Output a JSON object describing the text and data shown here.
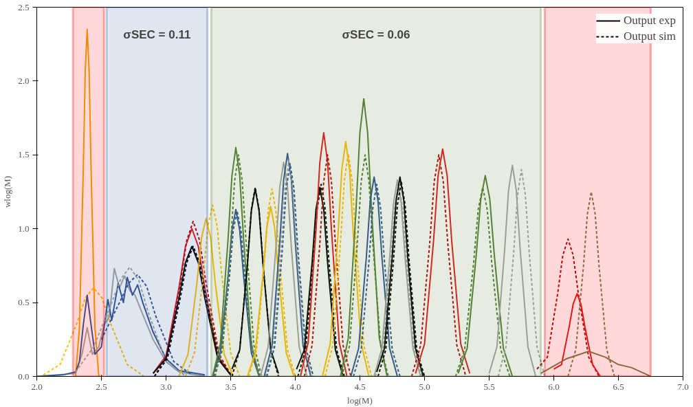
{
  "chart_data": {
    "type": "line",
    "xlabel": "log(M)",
    "ylabel": "wlog(M)",
    "xlim": [
      2.0,
      7.0
    ],
    "ylim": [
      0,
      2.5
    ],
    "xticks": [
      {
        "value": 2.0,
        "label": "2.0"
      },
      {
        "value": 2.5,
        "label": "2.5"
      },
      {
        "value": 3.0,
        "label": "3.0"
      },
      {
        "value": 3.5,
        "label": "3.5"
      },
      {
        "value": 4.0,
        "label": "4.0"
      },
      {
        "value": 4.5,
        "label": "4.5"
      },
      {
        "value": 5.0,
        "label": "5.0"
      },
      {
        "value": 5.5,
        "label": "5.5"
      },
      {
        "value": 6.0,
        "label": "6.0"
      },
      {
        "value": 6.5,
        "label": "6.5"
      },
      {
        "value": 7.0,
        "label": "7.0"
      }
    ],
    "yticks": [
      {
        "value": 0,
        "label": "0.0"
      },
      {
        "value": 0.5,
        "label": "0.5"
      },
      {
        "value": 1.0,
        "label": "1.0"
      },
      {
        "value": 1.5,
        "label": "1.5"
      },
      {
        "value": 2.0,
        "label": "2.0"
      },
      {
        "value": 2.5,
        "label": "2.5"
      }
    ],
    "grid": false,
    "legend": "top right",
    "bands": [
      {
        "axis": "x",
        "from": 2.28,
        "to": 2.52,
        "label": null,
        "color": "#ff0000"
      },
      {
        "axis": "x",
        "from": 2.54,
        "to": 3.32,
        "label": "σSEC = 0.11",
        "color": "#2f5597"
      },
      {
        "axis": "x",
        "from": 3.35,
        "to": 5.9,
        "label": "σSEC = 0.06",
        "color": "#548235"
      },
      {
        "axis": "x",
        "from": 5.93,
        "to": 6.75,
        "label": null,
        "color": "#ff0000"
      }
    ],
    "series": [
      {
        "color": "#f4a300",
        "line_style": "solid",
        "x": [
          2.3,
          2.33,
          2.36,
          2.375,
          2.39,
          2.405,
          2.42,
          2.45,
          2.48
        ],
        "values": [
          0,
          0.33,
          1.41,
          2.07,
          2.35,
          2.07,
          1.41,
          0.33,
          0
        ]
      },
      {
        "color": "#a6a6a6",
        "line_style": "solid",
        "x": [
          2.0,
          2.3,
          2.35,
          2.39,
          2.43,
          2.48,
          2.52,
          2.56,
          2.6,
          2.64,
          2.68,
          2.72,
          2.76,
          2.82,
          2.9,
          3.0,
          3.1,
          3.3
        ],
        "values": [
          0,
          0.02,
          0.15,
          0.33,
          0.15,
          0.2,
          0.35,
          0.4,
          0.73,
          0.6,
          0.68,
          0.58,
          0.55,
          0.42,
          0.25,
          0.1,
          0.03,
          0
        ]
      },
      {
        "color": "#ffc000",
        "line_style": "dashed",
        "x": [
          2.05,
          2.18,
          2.31,
          2.375,
          2.44,
          2.505,
          2.57,
          2.7,
          2.83
        ],
        "values": [
          0.01,
          0.08,
          0.36,
          0.53,
          0.6,
          0.53,
          0.36,
          0.08,
          0
        ]
      },
      {
        "color": "#2f5597",
        "line_style": "dashed",
        "x": [
          2.5,
          2.64,
          2.71,
          2.78,
          2.85,
          2.92,
          3.06,
          3.2
        ],
        "values": [
          0.25,
          0.5,
          0.63,
          0.69,
          0.61,
          0.41,
          0.1,
          0.01
        ]
      },
      {
        "color": "#2f5597",
        "line_style": "solid",
        "x": [
          2.0,
          2.2,
          2.3,
          2.33,
          2.36,
          2.39,
          2.42,
          2.45,
          2.5,
          2.55,
          2.58,
          2.63,
          2.67,
          2.7,
          2.74,
          2.78,
          2.82,
          2.9,
          3.0,
          3.1,
          3.3
        ],
        "values": [
          0,
          0.01,
          0.03,
          0.1,
          0.35,
          0.55,
          0.35,
          0.15,
          0.2,
          0.52,
          0.38,
          0.63,
          0.5,
          0.67,
          0.55,
          0.62,
          0.5,
          0.3,
          0.12,
          0.04,
          0.01
        ]
      },
      {
        "color": "#a6a6a6",
        "line_style": "dashed",
        "x": [
          2.3,
          2.44,
          2.58,
          2.65,
          2.72,
          2.79,
          2.86,
          3.0,
          3.14
        ],
        "values": [
          0.03,
          0.2,
          0.5,
          0.66,
          0.74,
          0.65,
          0.44,
          0.1,
          0.01
        ]
      },
      {
        "color": "#e31a1c",
        "line_style": "solid",
        "x": [
          2.9,
          3.0,
          3.1,
          3.15,
          3.2,
          3.25,
          3.3,
          3.4,
          3.5
        ],
        "values": [
          0.02,
          0.14,
          0.6,
          0.88,
          1.0,
          0.88,
          0.6,
          0.14,
          0.01
        ]
      },
      {
        "color": "#c00000",
        "line_style": "dashed",
        "x": [
          2.91,
          3.01,
          3.11,
          3.16,
          3.21,
          3.26,
          3.31,
          3.41,
          3.51
        ],
        "values": [
          0,
          0.15,
          0.63,
          0.92,
          1.05,
          0.92,
          0.63,
          0.15,
          0
        ]
      },
      {
        "name": "Output exp",
        "color": "#000000",
        "line_style": "solid",
        "x": [
          2.9,
          3.0,
          3.1,
          3.15,
          3.2,
          3.25,
          3.3,
          3.4,
          3.5
        ],
        "values": [
          0.02,
          0.12,
          0.53,
          0.77,
          0.88,
          0.77,
          0.53,
          0.12,
          0.01
        ]
      },
      {
        "name": "Output sim",
        "color": "#000000",
        "line_style": "dashed",
        "x": [
          2.91,
          3.01,
          3.11,
          3.16,
          3.21,
          3.26,
          3.31,
          3.41,
          3.51
        ],
        "values": [
          0,
          0.12,
          0.53,
          0.77,
          0.88,
          0.77,
          0.53,
          0.12,
          0
        ]
      },
      {
        "color": "#ffc000",
        "line_style": "solid",
        "x": [
          3.1,
          3.17,
          3.24,
          3.275,
          3.31,
          3.345,
          3.38,
          3.45,
          3.52
        ],
        "values": [
          0,
          0.15,
          0.64,
          0.94,
          1.07,
          0.94,
          0.64,
          0.15,
          0
        ]
      },
      {
        "color": "#ffc000",
        "line_style": "dashed",
        "x": [
          3.15,
          3.22,
          3.29,
          3.325,
          3.36,
          3.395,
          3.43,
          3.5,
          3.57
        ],
        "values": [
          0,
          0.16,
          0.7,
          1.02,
          1.16,
          1.02,
          0.7,
          0.16,
          0
        ]
      },
      {
        "color": "#2f5597",
        "line_style": "solid",
        "x": [
          3.36,
          3.42,
          3.48,
          3.51,
          3.54,
          3.57,
          3.6,
          3.66,
          3.72
        ],
        "values": [
          0,
          0.16,
          0.68,
          0.99,
          1.13,
          0.99,
          0.68,
          0.16,
          0
        ]
      },
      {
        "color": "#2f5597",
        "line_style": "dashed",
        "x": [
          3.37,
          3.43,
          3.49,
          3.52,
          3.55,
          3.58,
          3.61,
          3.67,
          3.73
        ],
        "values": [
          0,
          0.16,
          0.67,
          0.99,
          1.12,
          0.99,
          0.67,
          0.16,
          0
        ]
      },
      {
        "color": "#548235",
        "line_style": "solid",
        "x": [
          3.36,
          3.42,
          3.48,
          3.51,
          3.54,
          3.57,
          3.6,
          3.66,
          3.72
        ],
        "values": [
          0,
          0.22,
          0.93,
          1.36,
          1.55,
          1.36,
          0.93,
          0.22,
          0
        ]
      },
      {
        "color": "#548235",
        "line_style": "dashed",
        "x": [
          3.38,
          3.44,
          3.5,
          3.53,
          3.56,
          3.59,
          3.62,
          3.68,
          3.74
        ],
        "values": [
          0,
          0.21,
          0.9,
          1.32,
          1.5,
          1.32,
          0.9,
          0.21,
          0
        ]
      },
      {
        "color": "#000000",
        "line_style": "solid",
        "x": [
          3.51,
          3.57,
          3.63,
          3.66,
          3.69,
          3.72,
          3.75,
          3.81,
          3.87
        ],
        "values": [
          0.05,
          0.18,
          0.76,
          1.12,
          1.27,
          1.12,
          0.76,
          0.18,
          0.02
        ]
      },
      {
        "color": "#000000",
        "line_style": "dashed",
        "x": [
          3.51,
          3.57,
          3.63,
          3.66,
          3.69,
          3.72,
          3.75,
          3.81,
          3.87
        ],
        "values": [
          0,
          0.18,
          0.77,
          1.13,
          1.28,
          1.13,
          0.77,
          0.18,
          0
        ]
      },
      {
        "color": "#ffc000",
        "line_style": "solid",
        "x": [
          3.63,
          3.69,
          3.75,
          3.78,
          3.81,
          3.84,
          3.87,
          3.93,
          3.99
        ],
        "values": [
          0,
          0.16,
          0.69,
          1.01,
          1.15,
          1.01,
          0.69,
          0.16,
          0
        ]
      },
      {
        "color": "#ffc000",
        "line_style": "dashed",
        "x": [
          3.64,
          3.7,
          3.76,
          3.79,
          3.82,
          3.85,
          3.88,
          3.94,
          4.0
        ],
        "values": [
          0,
          0.18,
          0.76,
          1.12,
          1.27,
          1.12,
          0.76,
          0.18,
          0
        ]
      },
      {
        "color": "#a6a6a6",
        "line_style": "solid",
        "x": [
          3.73,
          3.79,
          3.85,
          3.88,
          3.91,
          3.94,
          3.97,
          4.03,
          4.09
        ],
        "values": [
          0,
          0.2,
          0.87,
          1.28,
          1.45,
          1.28,
          0.87,
          0.2,
          0
        ]
      },
      {
        "color": "#2f5597",
        "line_style": "solid",
        "x": [
          3.76,
          3.82,
          3.88,
          3.91,
          3.94,
          3.97,
          4.0,
          4.06,
          4.12
        ],
        "values": [
          0,
          0.21,
          0.91,
          1.33,
          1.51,
          1.33,
          0.91,
          0.21,
          0
        ]
      },
      {
        "color": "#a6a6a6",
        "line_style": "dashed",
        "x": [
          3.77,
          3.83,
          3.89,
          3.92,
          3.95,
          3.98,
          4.01,
          4.07,
          4.13
        ],
        "values": [
          0,
          0.2,
          0.88,
          1.28,
          1.46,
          1.28,
          0.88,
          0.2,
          0
        ]
      },
      {
        "color": "#2f5597",
        "line_style": "dashed",
        "x": [
          3.78,
          3.84,
          3.9,
          3.93,
          3.96,
          3.99,
          4.02,
          4.08,
          4.14
        ],
        "values": [
          0,
          0.2,
          0.86,
          1.27,
          1.44,
          1.27,
          0.86,
          0.2,
          0
        ]
      },
      {
        "color": "#000000",
        "line_style": "solid",
        "x": [
          4.01,
          4.07,
          4.13,
          4.16,
          4.19,
          4.22,
          4.25,
          4.31,
          4.37
        ],
        "values": [
          0.05,
          0.18,
          0.77,
          1.13,
          1.28,
          1.13,
          0.77,
          0.18,
          0
        ]
      },
      {
        "color": "#000000",
        "line_style": "dashed",
        "x": [
          4.02,
          4.08,
          4.14,
          4.17,
          4.2,
          4.23,
          4.26,
          4.32,
          4.38
        ],
        "values": [
          0,
          0.18,
          0.78,
          1.14,
          1.3,
          1.14,
          0.78,
          0.18,
          0
        ]
      },
      {
        "color": "#e31a1c",
        "line_style": "solid",
        "x": [
          4.04,
          4.1,
          4.16,
          4.19,
          4.22,
          4.25,
          4.28,
          4.34,
          4.4
        ],
        "values": [
          0,
          0.23,
          0.99,
          1.45,
          1.65,
          1.45,
          0.99,
          0.23,
          0
        ]
      },
      {
        "color": "#c00000",
        "line_style": "dashed",
        "x": [
          4.07,
          4.13,
          4.19,
          4.22,
          4.25,
          4.28,
          4.31,
          4.37,
          4.43
        ],
        "values": [
          0,
          0.21,
          0.9,
          1.32,
          1.5,
          1.32,
          0.9,
          0.21,
          0
        ]
      },
      {
        "color": "#ffc000",
        "line_style": "solid",
        "x": [
          4.21,
          4.27,
          4.33,
          4.36,
          4.39,
          4.42,
          4.45,
          4.51,
          4.57
        ],
        "values": [
          0,
          0.22,
          0.95,
          1.4,
          1.59,
          1.4,
          0.95,
          0.22,
          0
        ]
      },
      {
        "color": "#ffc000",
        "line_style": "dashed",
        "x": [
          4.23,
          4.29,
          4.35,
          4.38,
          4.41,
          4.44,
          4.47,
          4.53,
          4.59
        ],
        "values": [
          0,
          0.21,
          0.91,
          1.33,
          1.51,
          1.33,
          0.91,
          0.21,
          0
        ]
      },
      {
        "color": "#548235",
        "line_style": "solid",
        "x": [
          4.35,
          4.41,
          4.47,
          4.5,
          4.53,
          4.56,
          4.59,
          4.65,
          4.71
        ],
        "values": [
          0,
          0.26,
          1.13,
          1.65,
          1.88,
          1.65,
          1.13,
          0.26,
          0
        ]
      },
      {
        "color": "#548235",
        "line_style": "dashed",
        "x": [
          4.36,
          4.42,
          4.48,
          4.51,
          4.54,
          4.57,
          4.6,
          4.66,
          4.72
        ],
        "values": [
          0,
          0.21,
          0.9,
          1.32,
          1.5,
          1.32,
          0.9,
          0.21,
          0
        ]
      },
      {
        "color": "#2f5597",
        "line_style": "solid",
        "x": [
          4.43,
          4.49,
          4.55,
          4.58,
          4.61,
          4.64,
          4.67,
          4.73,
          4.79
        ],
        "values": [
          0,
          0.19,
          0.81,
          1.19,
          1.35,
          1.19,
          0.81,
          0.19,
          0
        ]
      },
      {
        "color": "#2f5597",
        "line_style": "dashed",
        "x": [
          4.45,
          4.51,
          4.57,
          4.6,
          4.63,
          4.66,
          4.69,
          4.75,
          4.81
        ],
        "values": [
          0,
          0.18,
          0.78,
          1.14,
          1.3,
          1.14,
          0.78,
          0.18,
          0
        ]
      },
      {
        "color": "#a6a6a6",
        "line_style": "solid",
        "x": [
          4.61,
          4.67,
          4.73,
          4.76,
          4.79,
          4.82,
          4.85,
          4.91,
          4.97
        ],
        "values": [
          0,
          0.19,
          0.8,
          1.17,
          1.33,
          1.17,
          0.8,
          0.19,
          0
        ]
      },
      {
        "color": "#a6a6a6",
        "line_style": "dashed",
        "x": [
          4.62,
          4.68,
          4.74,
          4.77,
          4.8,
          4.83,
          4.86,
          4.92,
          4.98
        ],
        "values": [
          0,
          0.18,
          0.78,
          1.14,
          1.3,
          1.14,
          0.78,
          0.18,
          0
        ]
      },
      {
        "color": "#000000",
        "line_style": "solid",
        "x": [
          4.63,
          4.69,
          4.75,
          4.78,
          4.81,
          4.84,
          4.87,
          4.93,
          4.99
        ],
        "values": [
          0.03,
          0.19,
          0.81,
          1.19,
          1.35,
          1.19,
          0.81,
          0.19,
          0
        ]
      },
      {
        "color": "#000000",
        "line_style": "dashed",
        "x": [
          4.64,
          4.7,
          4.76,
          4.79,
          4.82,
          4.85,
          4.88,
          4.94,
          5.0
        ],
        "values": [
          0,
          0.18,
          0.79,
          1.16,
          1.32,
          1.16,
          0.79,
          0.18,
          0
        ]
      },
      {
        "color": "#c00000",
        "line_style": "dashed",
        "x": [
          4.9,
          4.97,
          5.04,
          5.075,
          5.11,
          5.145,
          5.18,
          5.25,
          5.32
        ],
        "values": [
          0,
          0.21,
          0.9,
          1.32,
          1.5,
          1.32,
          0.9,
          0.21,
          0
        ]
      },
      {
        "color": "#e31a1c",
        "line_style": "solid",
        "x": [
          4.93,
          5.0,
          5.07,
          5.105,
          5.14,
          5.175,
          5.21,
          5.28,
          5.35
        ],
        "values": [
          0.02,
          0.22,
          0.92,
          1.36,
          1.54,
          1.36,
          0.92,
          0.22,
          0.02
        ]
      },
      {
        "color": "#548235",
        "line_style": "dashed",
        "x": [
          5.24,
          5.31,
          5.38,
          5.415,
          5.45,
          5.485,
          5.52,
          5.59,
          5.66
        ],
        "values": [
          0,
          0.18,
          0.77,
          1.13,
          1.28,
          1.13,
          0.77,
          0.18,
          0
        ]
      },
      {
        "color": "#548235",
        "line_style": "solid",
        "x": [
          5.26,
          5.33,
          5.4,
          5.435,
          5.47,
          5.505,
          5.54,
          5.61,
          5.68
        ],
        "values": [
          0.02,
          0.19,
          0.82,
          1.2,
          1.36,
          1.2,
          0.82,
          0.19,
          0
        ]
      },
      {
        "color": "#a6a6a6",
        "line_style": "solid",
        "x": [
          5.5,
          5.56,
          5.62,
          5.65,
          5.68,
          5.71,
          5.74,
          5.8,
          5.86
        ],
        "values": [
          0.02,
          0.2,
          0.86,
          1.26,
          1.43,
          1.26,
          0.86,
          0.2,
          0
        ]
      },
      {
        "color": "#a6a6a6",
        "line_style": "dashed",
        "x": [
          5.57,
          5.63,
          5.69,
          5.72,
          5.75,
          5.78,
          5.81,
          5.87,
          5.93
        ],
        "values": [
          0,
          0.2,
          0.84,
          1.23,
          1.4,
          1.23,
          0.84,
          0.2,
          0
        ]
      },
      {
        "color": "#c00000",
        "line_style": "dashed",
        "x": [
          5.87,
          5.95,
          6.03,
          6.07,
          6.11,
          6.15,
          6.19,
          6.27,
          6.35
        ],
        "values": [
          0.05,
          0.13,
          0.56,
          0.82,
          0.93,
          0.82,
          0.56,
          0.13,
          0
        ]
      },
      {
        "color": "#e31a1c",
        "line_style": "solid",
        "x": [
          6.0,
          6.06,
          6.12,
          6.15,
          6.18,
          6.21,
          6.24,
          6.3,
          6.36
        ],
        "values": [
          0.05,
          0.08,
          0.34,
          0.49,
          0.56,
          0.49,
          0.34,
          0.08,
          0
        ]
      },
      {
        "color": "#847548",
        "line_style": "dashed",
        "x": [
          6.11,
          6.17,
          6.23,
          6.26,
          6.29,
          6.32,
          6.35,
          6.41,
          6.47
        ],
        "values": [
          0,
          0.18,
          0.75,
          1.1,
          1.25,
          1.1,
          0.75,
          0.18,
          0
        ]
      },
      {
        "color": "#847548",
        "line_style": "solid",
        "x": [
          5.9,
          6.0,
          6.1,
          6.27,
          6.4,
          6.5,
          6.6,
          6.7,
          6.75
        ],
        "values": [
          0.02,
          0.07,
          0.12,
          0.17,
          0.13,
          0.08,
          0.06,
          0.02,
          0
        ]
      }
    ]
  }
}
